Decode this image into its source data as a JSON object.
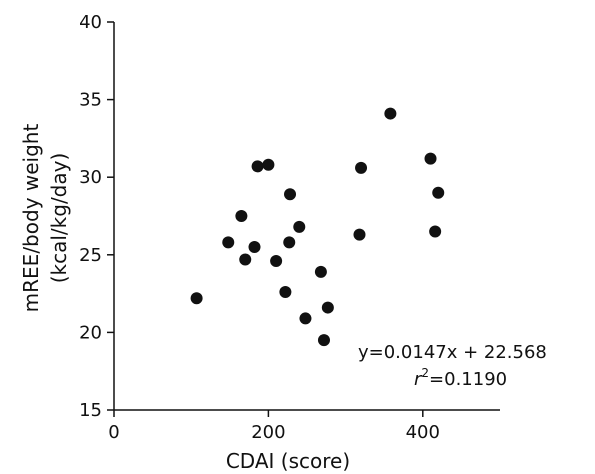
{
  "chart_data": {
    "type": "scatter",
    "title": "",
    "xlabel": "CDAI (score)",
    "ylabel_lines": [
      "mREE/body weight",
      "(kcal/kg/day)"
    ],
    "xlim": [
      0,
      500
    ],
    "ylim": [
      15,
      40
    ],
    "x_ticks": [
      0,
      200,
      400
    ],
    "y_ticks": [
      15,
      20,
      25,
      30,
      35,
      40
    ],
    "grid": false,
    "points": [
      {
        "x": 107,
        "y": 22.2
      },
      {
        "x": 148,
        "y": 25.8
      },
      {
        "x": 165,
        "y": 27.5
      },
      {
        "x": 170,
        "y": 24.7
      },
      {
        "x": 182,
        "y": 25.5
      },
      {
        "x": 186,
        "y": 30.7
      },
      {
        "x": 200,
        "y": 30.8
      },
      {
        "x": 210,
        "y": 24.6
      },
      {
        "x": 222,
        "y": 22.6
      },
      {
        "x": 227,
        "y": 25.8
      },
      {
        "x": 228,
        "y": 28.9
      },
      {
        "x": 240,
        "y": 26.8
      },
      {
        "x": 248,
        "y": 20.9
      },
      {
        "x": 268,
        "y": 23.9
      },
      {
        "x": 272,
        "y": 19.5
      },
      {
        "x": 277,
        "y": 21.6
      },
      {
        "x": 318,
        "y": 26.3
      },
      {
        "x": 320,
        "y": 30.6
      },
      {
        "x": 358,
        "y": 34.1
      },
      {
        "x": 410,
        "y": 31.2
      },
      {
        "x": 416,
        "y": 26.5
      },
      {
        "x": 420,
        "y": 29.0
      }
    ],
    "annotations": {
      "equation": "y=0.0147x + 22.568",
      "r_squared_var": "r",
      "r_squared_exp": "2",
      "r_squared_value": "=0.1190"
    }
  }
}
